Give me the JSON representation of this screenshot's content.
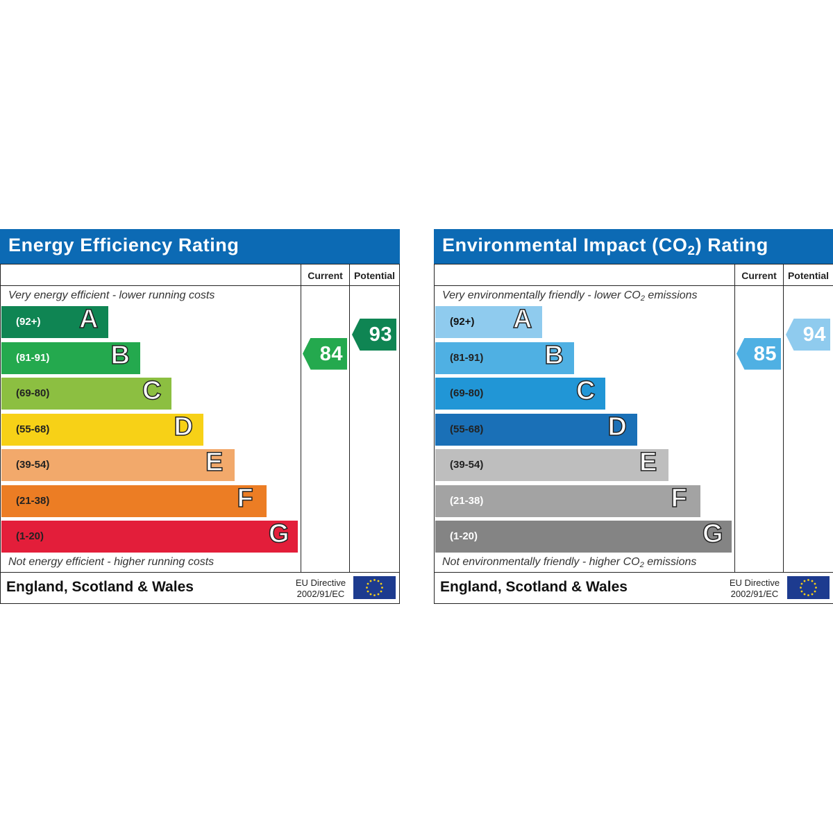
{
  "chart_data": [
    {
      "type": "bar",
      "title": "Energy Efficiency Rating",
      "columns": [
        "Current",
        "Potential"
      ],
      "top_note": "Very energy efficient - lower running costs",
      "bottom_note": "Not energy efficient - higher running costs",
      "footer_region": "England, Scotland & Wales",
      "directive": [
        "EU Directive",
        "2002/91/EC"
      ],
      "bands": [
        {
          "letter": "A",
          "range": "(92+)",
          "color": "#0f8553",
          "text_color": "#ffffff"
        },
        {
          "letter": "B",
          "range": "(81-91)",
          "color": "#24a94e",
          "text_color": "#ffffff"
        },
        {
          "letter": "C",
          "range": "(69-80)",
          "color": "#8cbf41",
          "text_color": "#222222"
        },
        {
          "letter": "D",
          "range": "(55-68)",
          "color": "#f7d117",
          "text_color": "#222222"
        },
        {
          "letter": "E",
          "range": "(39-54)",
          "color": "#f2a96b",
          "text_color": "#222222"
        },
        {
          "letter": "F",
          "range": "(21-38)",
          "color": "#ec7d24",
          "text_color": "#222222"
        },
        {
          "letter": "G",
          "range": "(1-20)",
          "color": "#e31e3a",
          "text_color": "#222222"
        }
      ],
      "current": {
        "value": 84,
        "color": "#24a94e"
      },
      "potential": {
        "value": 93,
        "color": "#0f8553"
      }
    },
    {
      "type": "bar",
      "title": "Environmental Impact (CO",
      "title_sub": "2",
      "title_end": ") Rating",
      "columns": [
        "Current",
        "Potential"
      ],
      "top_note": "Very environmentally friendly - lower CO",
      "top_note_sub": "2",
      "top_note_end": " emissions",
      "bottom_note": "Not environmentally friendly - higher CO",
      "bottom_note_sub": "2",
      "bottom_note_end": " emissions",
      "footer_region": "England, Scotland & Wales",
      "directive": [
        "EU Directive",
        "2002/91/EC"
      ],
      "bands": [
        {
          "letter": "A",
          "range": "(92+)",
          "color": "#8fcbee",
          "text_color": "#111111"
        },
        {
          "letter": "B",
          "range": "(81-91)",
          "color": "#4fb0e3",
          "text_color": "#222222"
        },
        {
          "letter": "C",
          "range": "(69-80)",
          "color": "#2196d6",
          "text_color": "#222222"
        },
        {
          "letter": "D",
          "range": "(55-68)",
          "color": "#1a70b7",
          "text_color": "#222222"
        },
        {
          "letter": "E",
          "range": "(39-54)",
          "color": "#bebebe",
          "text_color": "#222222"
        },
        {
          "letter": "F",
          "range": "(21-38)",
          "color": "#a3a3a3",
          "text_color": "#ffffff"
        },
        {
          "letter": "G",
          "range": "(1-20)",
          "color": "#848484",
          "text_color": "#ffffff"
        }
      ],
      "current": {
        "value": 85,
        "color": "#4fb0e3"
      },
      "potential": {
        "value": 94,
        "color": "#8fcbee"
      }
    }
  ]
}
